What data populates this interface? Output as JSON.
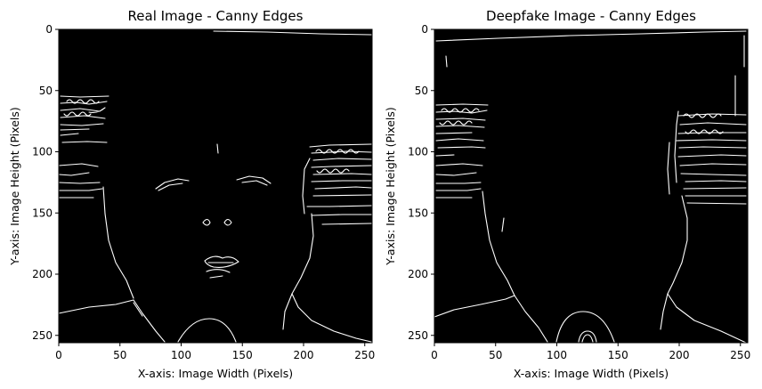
{
  "figure": {
    "panels": [
      {
        "id": "real",
        "title": "Real Image - Canny Edges",
        "xlabel": "X-axis: Image Width (Pixels)",
        "ylabel": "Y-axis: Image Height (Pixels)",
        "xticks": [
          0,
          50,
          100,
          150,
          200,
          250
        ],
        "yticks": [
          0,
          50,
          100,
          150,
          200,
          250
        ],
        "xlim": [
          0,
          256
        ],
        "ylim": [
          256,
          0
        ],
        "background": "#000000",
        "edge_color": "#ffffff"
      },
      {
        "id": "deepfake",
        "title": "Deepfake Image - Canny Edges",
        "xlabel": "X-axis: Image Width (Pixels)",
        "ylabel": "Y-axis: Image Height (Pixels)",
        "xticks": [
          0,
          50,
          100,
          150,
          200,
          250
        ],
        "yticks": [
          0,
          50,
          100,
          150,
          200,
          250
        ],
        "xlim": [
          0,
          256
        ],
        "ylim": [
          256,
          0
        ],
        "background": "#000000",
        "edge_color": "#ffffff"
      }
    ]
  }
}
